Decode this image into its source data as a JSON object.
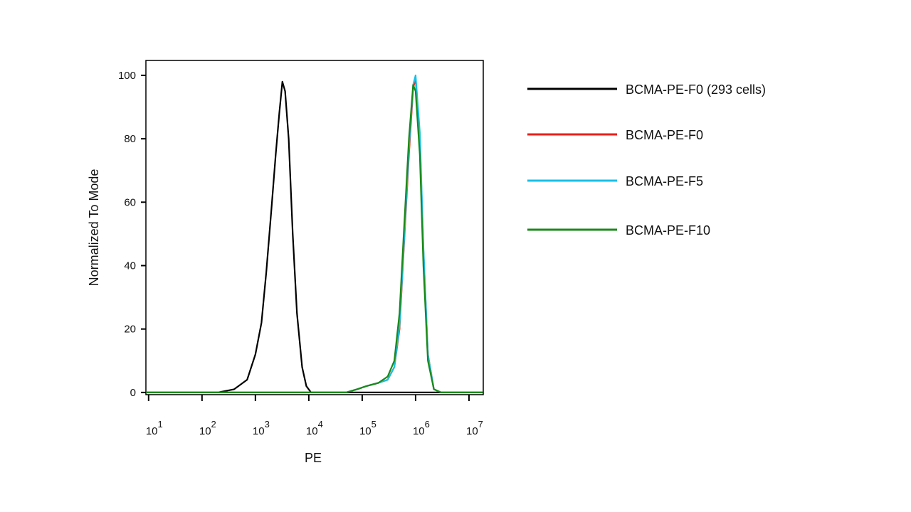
{
  "chart_data": {
    "type": "line",
    "xlabel": "PE",
    "ylabel": "Normalized To Mode",
    "xscale": "log",
    "xlim": [
      8.9,
      18500000
    ],
    "ylim": [
      -0.7,
      104.7
    ],
    "xticks": [
      {
        "value": 10,
        "label": "10",
        "exponent": "1"
      },
      {
        "value": 100,
        "label": "10",
        "exponent": "2"
      },
      {
        "value": 1000,
        "label": "10",
        "exponent": "3"
      },
      {
        "value": 10000,
        "label": "10",
        "exponent": "4"
      },
      {
        "value": 100000,
        "label": "10",
        "exponent": "5"
      },
      {
        "value": 1000000,
        "label": "10",
        "exponent": "6"
      },
      {
        "value": 10000000,
        "label": "10",
        "exponent": "7"
      }
    ],
    "yticks": [
      0,
      20,
      40,
      60,
      80,
      100
    ],
    "series": [
      {
        "name": "BCMA-PE-F0 (293 cells)",
        "color": "#000000",
        "x": [
          9,
          200,
          400,
          700,
          1000,
          1300,
          1600,
          2000,
          2400,
          2800,
          3200,
          3600,
          4200,
          5000,
          6000,
          7500,
          9000,
          11000,
          18000000
        ],
        "values": [
          0,
          0,
          1,
          4,
          12,
          22,
          38,
          58,
          75,
          88,
          98,
          95,
          80,
          50,
          25,
          8,
          2,
          0,
          0
        ]
      },
      {
        "name": "BCMA-PE-F0",
        "color": "#e8201a",
        "x": [
          9,
          50000,
          80000,
          120000,
          200000,
          300000,
          400000,
          500000,
          600000,
          750000,
          900000,
          1000000,
          1200000,
          1400000,
          1700000,
          2200000,
          3000000,
          18000000
        ],
        "values": [
          0,
          0,
          1,
          2,
          3,
          4,
          8,
          20,
          45,
          75,
          96,
          99,
          80,
          45,
          12,
          1,
          0,
          0
        ]
      },
      {
        "name": "BCMA-PE-F5",
        "color": "#18c0e8",
        "x": [
          9,
          50000,
          80000,
          120000,
          200000,
          300000,
          400000,
          500000,
          600000,
          750000,
          900000,
          1000000,
          1200000,
          1400000,
          1700000,
          2200000,
          3000000,
          18000000
        ],
        "values": [
          0,
          0,
          1,
          2,
          3,
          4,
          8,
          21,
          46,
          77,
          97,
          100,
          82,
          46,
          12,
          1,
          0,
          0
        ]
      },
      {
        "name": "BCMA-PE-F10",
        "color": "#1a8a1a",
        "x": [
          9,
          50000,
          80000,
          120000,
          200000,
          300000,
          400000,
          500000,
          600000,
          750000,
          900000,
          1000000,
          1200000,
          1400000,
          1700000,
          2200000,
          3000000,
          18000000
        ],
        "values": [
          0,
          0,
          1,
          2,
          3,
          5,
          10,
          25,
          50,
          80,
          97,
          95,
          75,
          40,
          10,
          1,
          0,
          0
        ]
      }
    ]
  }
}
